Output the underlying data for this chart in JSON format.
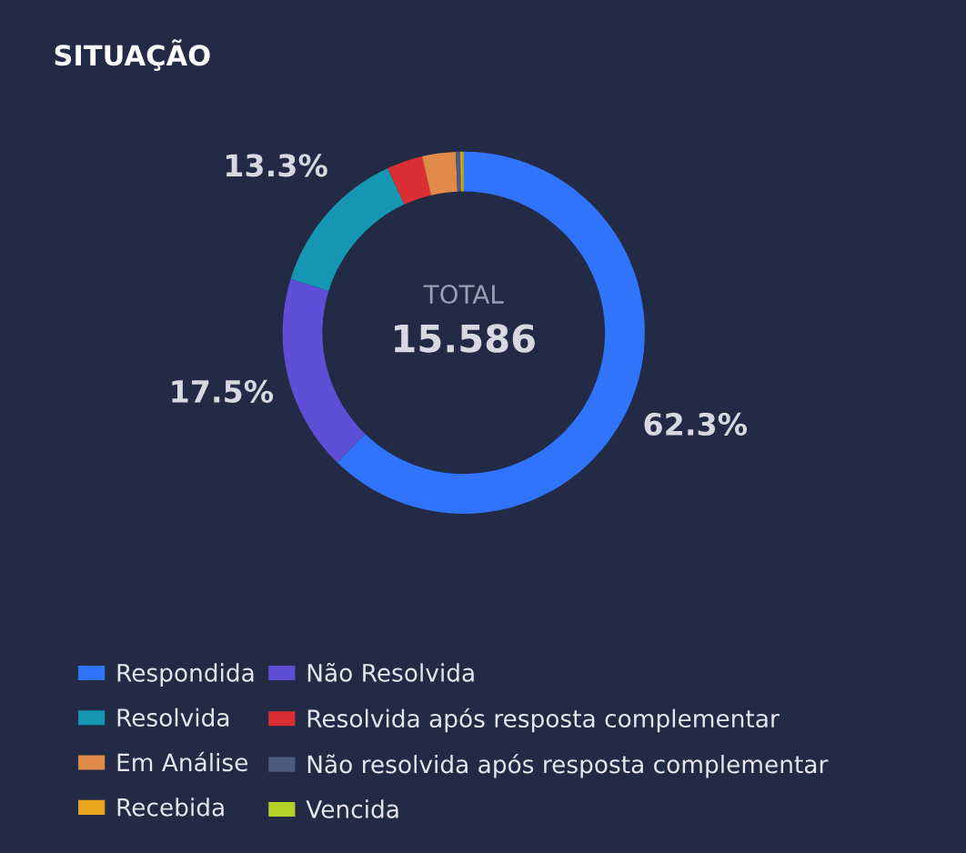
{
  "chart_data": {
    "type": "donut",
    "title": "SITUAÇÃO",
    "categories": [
      "Respondida",
      "Não Resolvida",
      "Resolvida",
      "Resolvida após resposta complementar",
      "Em Análise",
      "Não resolvida após resposta complementar",
      "Recebida",
      "Vencida"
    ],
    "values": [
      62.3,
      17.5,
      13.3,
      3.2,
      3.0,
      0.4,
      0.2,
      0.1
    ],
    "colors": [
      "#2f74fb",
      "#5e4fd6",
      "#1597b3",
      "#dc2f34",
      "#e08a4a",
      "#4e5a80",
      "#e9a51f",
      "#b5d22a"
    ],
    "value_labels": [
      "62.3%",
      "17.5%",
      "13.3%",
      null,
      null,
      null,
      null,
      null
    ],
    "annotations": [
      "TOTAL",
      "15.586"
    ],
    "legend": "bottom"
  }
}
